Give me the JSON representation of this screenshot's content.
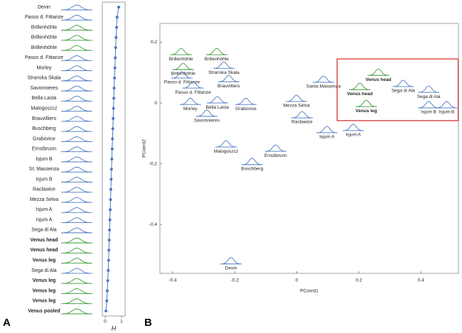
{
  "chart_data": [
    {
      "type": "dot",
      "panel_label": "A",
      "xlabel": "H",
      "categories": [
        "Devin",
        "Passo d. Fittanze",
        "Brillenhöhle",
        "Brillenhöhle",
        "Brillenhöhle",
        "Passo d. Fittanze",
        "Morley",
        "Stranska Skala",
        "Savonnieres",
        "Bella Lasta",
        "Malogoszcz",
        "Brauvilliers",
        "Buschberg",
        "Grabovice",
        "Ernstbrunn",
        "Isjum B",
        "St. Massenza",
        "Isjum B",
        "Raclawice",
        "Mezza Selva",
        "Isjum A",
        "Isjum A",
        "Sega di Ala",
        "Venus head",
        "Venus head",
        "Venus leg",
        "Sega di Ala",
        "Venus leg",
        "Venus leg",
        "Venus leg",
        "Venus pooled"
      ],
      "values": [
        0.83,
        0.73,
        0.7,
        0.67,
        0.64,
        0.62,
        0.6,
        0.57,
        0.55,
        0.53,
        0.51,
        0.49,
        0.47,
        0.45,
        0.43,
        0.41,
        0.39,
        0.37,
        0.35,
        0.33,
        0.31,
        0.29,
        0.27,
        0.25,
        0.23,
        0.21,
        0.19,
        0.16,
        0.13,
        0.1,
        0.05
      ],
      "colors": [
        "#4a78c2",
        "#4a78c2",
        "#3a9a3a",
        "#3a9a3a",
        "#3a9a3a",
        "#4a78c2",
        "#4a78c2",
        "#4a78c2",
        "#4a78c2",
        "#4a78c2",
        "#4a78c2",
        "#4a78c2",
        "#4a78c2",
        "#4a78c2",
        "#4a78c2",
        "#4a78c2",
        "#4a78c2",
        "#4a78c2",
        "#4a78c2",
        "#4a78c2",
        "#4a78c2",
        "#4a78c2",
        "#4a78c2",
        "#3a9a3a",
        "#3a9a3a",
        "#3a9a3a",
        "#4a78c2",
        "#3a9a3a",
        "#3a9a3a",
        "#3a9a3a",
        "#3a9a3a"
      ],
      "bold": [
        false,
        false,
        false,
        false,
        false,
        false,
        false,
        false,
        false,
        false,
        false,
        false,
        false,
        false,
        false,
        false,
        false,
        false,
        false,
        false,
        false,
        false,
        false,
        true,
        true,
        true,
        false,
        true,
        true,
        true,
        true
      ],
      "point_color": "#4a78c2",
      "xlim": [
        -0.17,
        1.22
      ],
      "xticks": [
        0,
        1
      ]
    },
    {
      "type": "scatter",
      "panel_label": "B",
      "xlabel": "PCoord1",
      "ylabel": "PCoord2",
      "labels": [
        "Brillenhöhle",
        "Brillenhöhle",
        "Brillenhöhle",
        "Stranska Skala",
        "Passo d. Fittanze",
        "Brauvilliers",
        "Passo d. Fittanze",
        "Morley",
        "Bella Lasta",
        "Grabovice",
        "Savonnieres",
        "Santa Massenza",
        "Mezza Selva",
        "Raclawice",
        "Isjum A",
        "Isjum A",
        "Malogoszcz",
        "Ernstbrunn",
        "Buschberg",
        "Devin",
        "Venus head",
        "Venus head",
        "Sega di Ala",
        "Sega di Ala",
        "Venus leg",
        "Isjum B",
        "Isjum B"
      ],
      "x": [
        -0.373,
        -0.258,
        -0.366,
        -0.235,
        -0.37,
        -0.219,
        -0.334,
        -0.343,
        -0.256,
        -0.164,
        -0.29,
        0.086,
        -0.001,
        0.017,
        0.097,
        0.182,
        -0.228,
        -0.068,
        -0.144,
        -0.212,
        0.263,
        0.203,
        0.343,
        0.425,
        0.224,
        0.425,
        0.483
      ],
      "y": [
        0.159,
        0.159,
        0.11,
        0.114,
        0.082,
        0.07,
        0.049,
        -0.005,
        0.0,
        -0.005,
        -0.044,
        0.068,
        0.005,
        -0.049,
        -0.098,
        -0.091,
        -0.145,
        -0.159,
        -0.203,
        -0.53,
        0.091,
        0.044,
        0.054,
        0.035,
        -0.012,
        -0.016,
        -0.016
      ],
      "colors": [
        "#3a9a3a",
        "#3a9a3a",
        "#3a9a3a",
        "#4a78c2",
        "#4a78c2",
        "#4a78c2",
        "#4a78c2",
        "#4a78c2",
        "#4a78c2",
        "#4a78c2",
        "#4a78c2",
        "#4a78c2",
        "#4a78c2",
        "#4a78c2",
        "#4a78c2",
        "#4a78c2",
        "#4a78c2",
        "#4a78c2",
        "#4a78c2",
        "#4a78c2",
        "#3a9a3a",
        "#3a9a3a",
        "#4a78c2",
        "#4a78c2",
        "#3a9a3a",
        "#4a78c2",
        "#4a78c2"
      ],
      "bold": [
        false,
        false,
        false,
        false,
        false,
        false,
        false,
        false,
        false,
        false,
        false,
        false,
        false,
        false,
        false,
        false,
        false,
        false,
        false,
        false,
        true,
        true,
        false,
        false,
        true,
        false,
        false
      ],
      "highlight": {
        "xlim": [
          0.13,
          0.52
        ],
        "ylim": [
          -0.058,
          0.145
        ],
        "color": "#d62728"
      },
      "xlim": [
        -0.441,
        0.521
      ],
      "ylim": [
        -0.561,
        0.262
      ],
      "xticks": [
        -0.4,
        -0.2,
        0,
        0.2,
        0.4
      ],
      "yticks": [
        -0.4,
        -0.2,
        0,
        0.2
      ]
    }
  ]
}
